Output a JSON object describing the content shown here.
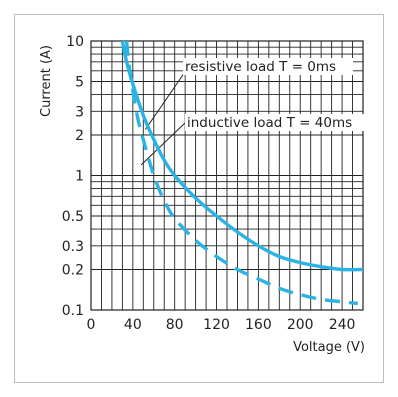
{
  "chart_data": {
    "type": "line",
    "title": "",
    "xlabel": "Voltage (V)",
    "ylabel": "Current (A)",
    "xscale": "linear",
    "yscale": "log",
    "xlim": [
      0,
      260
    ],
    "ylim": [
      0.1,
      10
    ],
    "grid": true,
    "x_ticks": [
      0,
      40,
      80,
      120,
      160,
      200,
      240
    ],
    "y_tick_labels": [
      {
        "value": 10,
        "label": "10"
      },
      {
        "value": 5,
        "label": "5"
      },
      {
        "value": 3,
        "label": "3"
      },
      {
        "value": 2,
        "label": "2"
      },
      {
        "value": 1,
        "label": "1"
      },
      {
        "value": 0.5,
        "label": "0.5"
      },
      {
        "value": 0.3,
        "label": "0.3"
      },
      {
        "value": 0.2,
        "label": "0.2"
      },
      {
        "value": 0.1,
        "label": "0.1"
      }
    ],
    "y_grid": [
      10,
      9,
      8,
      7,
      6,
      5,
      4,
      3,
      2,
      1,
      0.9,
      0.8,
      0.7,
      0.6,
      0.5,
      0.4,
      0.3,
      0.2,
      0.1
    ],
    "x_grid": [
      0,
      10,
      20,
      30,
      40,
      50,
      60,
      70,
      80,
      90,
      100,
      110,
      120,
      130,
      140,
      150,
      160,
      170,
      180,
      190,
      200,
      210,
      220,
      230,
      240,
      250,
      260
    ],
    "series": [
      {
        "name": "resistive load T = 0ms",
        "style": "solid",
        "color": "#2bb3e6",
        "x": [
          30,
          34,
          40,
          50,
          60,
          70,
          80,
          100,
          120,
          140,
          160,
          180,
          200,
          220,
          240,
          260
        ],
        "y": [
          10,
          7,
          4.8,
          2.8,
          1.85,
          1.3,
          1.0,
          0.68,
          0.5,
          0.38,
          0.3,
          0.25,
          0.225,
          0.21,
          0.2,
          0.2
        ]
      },
      {
        "name": "inductive load T = 40ms",
        "style": "dashed",
        "color": "#2bb3e6",
        "x": [
          34,
          36,
          40,
          45,
          50,
          60,
          70,
          80,
          100,
          120,
          140,
          160,
          180,
          200,
          220,
          240,
          255
        ],
        "y": [
          10,
          7,
          4.3,
          2.6,
          1.85,
          1.0,
          0.65,
          0.48,
          0.33,
          0.25,
          0.2,
          0.17,
          0.145,
          0.13,
          0.12,
          0.115,
          0.112
        ]
      }
    ],
    "annotations": [
      {
        "text": "resistive load T = 0ms",
        "points_to": "resistive load T = 0ms",
        "target": {
          "x": 52,
          "y": 2.2
        }
      },
      {
        "text": "inductive load T = 40ms",
        "points_to": "inductive load T = 40ms",
        "target": {
          "x": 48,
          "y": 1.2
        }
      }
    ]
  }
}
